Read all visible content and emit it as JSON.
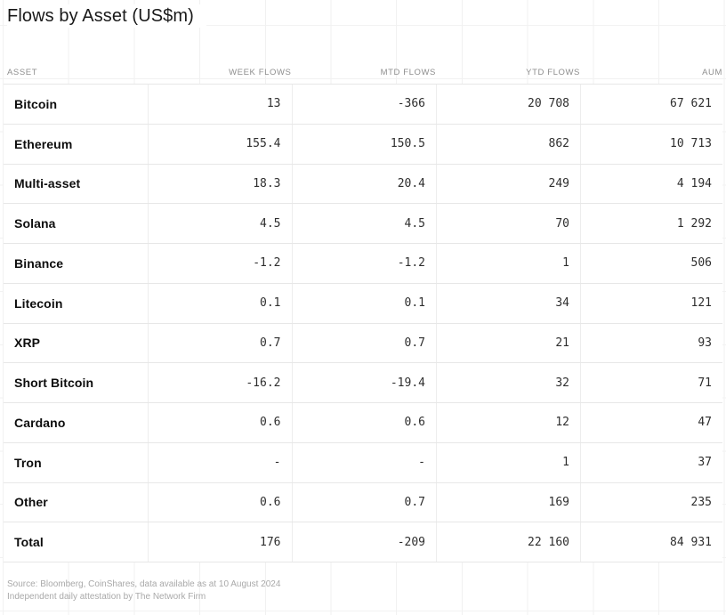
{
  "title": "Flows by Asset (US$m)",
  "table": {
    "columns": [
      "Asset",
      "Week flows",
      "MTD flows",
      "YTD flows",
      "AUM"
    ],
    "rows": [
      {
        "asset": "Bitcoin",
        "week": "13",
        "mtd": "-366",
        "ytd": "20 708",
        "aum": "67 621"
      },
      {
        "asset": "Ethereum",
        "week": "155.4",
        "mtd": "150.5",
        "ytd": "862",
        "aum": "10 713"
      },
      {
        "asset": "Multi-asset",
        "week": "18.3",
        "mtd": "20.4",
        "ytd": "249",
        "aum": "4 194"
      },
      {
        "asset": "Solana",
        "week": "4.5",
        "mtd": "4.5",
        "ytd": "70",
        "aum": "1 292"
      },
      {
        "asset": "Binance",
        "week": "-1.2",
        "mtd": "-1.2",
        "ytd": "1",
        "aum": "506"
      },
      {
        "asset": "Litecoin",
        "week": "0.1",
        "mtd": "0.1",
        "ytd": "34",
        "aum": "121"
      },
      {
        "asset": "XRP",
        "week": "0.7",
        "mtd": "0.7",
        "ytd": "21",
        "aum": "93"
      },
      {
        "asset": "Short Bitcoin",
        "week": "-16.2",
        "mtd": "-19.4",
        "ytd": "32",
        "aum": "71"
      },
      {
        "asset": "Cardano",
        "week": "0.6",
        "mtd": "0.6",
        "ytd": "12",
        "aum": "47"
      },
      {
        "asset": "Tron",
        "week": "-",
        "mtd": "-",
        "ytd": "1",
        "aum": "37"
      },
      {
        "asset": "Other",
        "week": "0.6",
        "mtd": "0.7",
        "ytd": "169",
        "aum": "235"
      },
      {
        "asset": "Total",
        "week": "176",
        "mtd": "-209",
        "ytd": "22 160",
        "aum": "84 931"
      }
    ]
  },
  "footer": {
    "line1": "Source: Bloomberg, CoinShares, data available as at 10 August 2024",
    "line2": "Independent daily attestation by The Network Firm"
  },
  "colors": {
    "text": "#0d0d0d",
    "number_text": "#2e2e2e",
    "muted_label": "#8e8e8e",
    "row_border": "#e7e7e7",
    "background_grid": "#f1f1f1",
    "footer_text": "#a9a9a9"
  },
  "chart_data": {
    "type": "table",
    "title": "Flows by Asset (US$m)",
    "columns": [
      "Asset",
      "Week flows",
      "MTD flows",
      "YTD flows",
      "AUM"
    ],
    "rows": [
      [
        "Bitcoin",
        13,
        -366,
        20708,
        67621
      ],
      [
        "Ethereum",
        155.4,
        150.5,
        862,
        10713
      ],
      [
        "Multi-asset",
        18.3,
        20.4,
        249,
        4194
      ],
      [
        "Solana",
        4.5,
        4.5,
        70,
        1292
      ],
      [
        "Binance",
        -1.2,
        -1.2,
        1,
        506
      ],
      [
        "Litecoin",
        0.1,
        0.1,
        34,
        121
      ],
      [
        "XRP",
        0.7,
        0.7,
        21,
        93
      ],
      [
        "Short Bitcoin",
        -16.2,
        -19.4,
        32,
        71
      ],
      [
        "Cardano",
        0.6,
        0.6,
        12,
        47
      ],
      [
        "Tron",
        null,
        null,
        1,
        37
      ],
      [
        "Other",
        0.6,
        0.7,
        169,
        235
      ],
      [
        "Total",
        176,
        -209,
        22160,
        84931
      ]
    ],
    "notes": [
      "Source: Bloomberg, CoinShares, data available as at 10 August 2024",
      "Independent daily attestation by The Network Firm"
    ]
  }
}
